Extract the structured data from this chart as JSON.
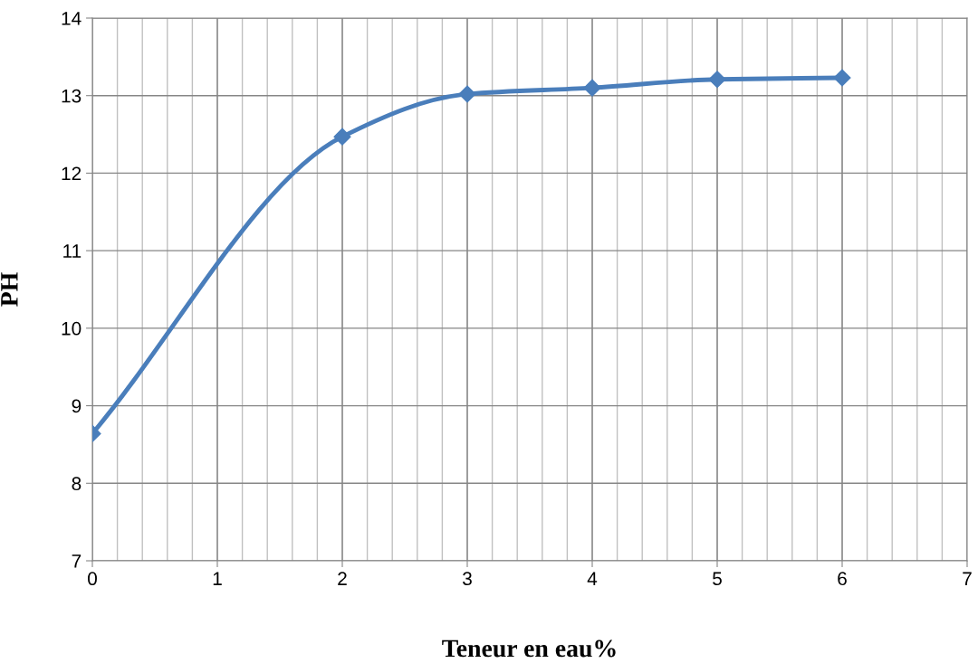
{
  "chart_data": {
    "type": "line",
    "xlabel": "Teneur en eau%",
    "ylabel": "PH",
    "x": [
      0,
      2,
      3,
      4,
      5,
      6
    ],
    "series": [
      {
        "color": "#4a7ebb",
        "values": [
          8.64,
          12.47,
          13.02,
          13.1,
          13.21,
          13.23
        ]
      }
    ],
    "xlim": [
      0,
      7
    ],
    "xticks": [
      0,
      1,
      2,
      3,
      4,
      5,
      6,
      7
    ],
    "ylim": [
      7,
      14
    ],
    "yticks": [
      7,
      8,
      9,
      10,
      11,
      12,
      13,
      14
    ],
    "grid": true,
    "marker": "diamond",
    "line_style": "solid",
    "legend": false
  }
}
